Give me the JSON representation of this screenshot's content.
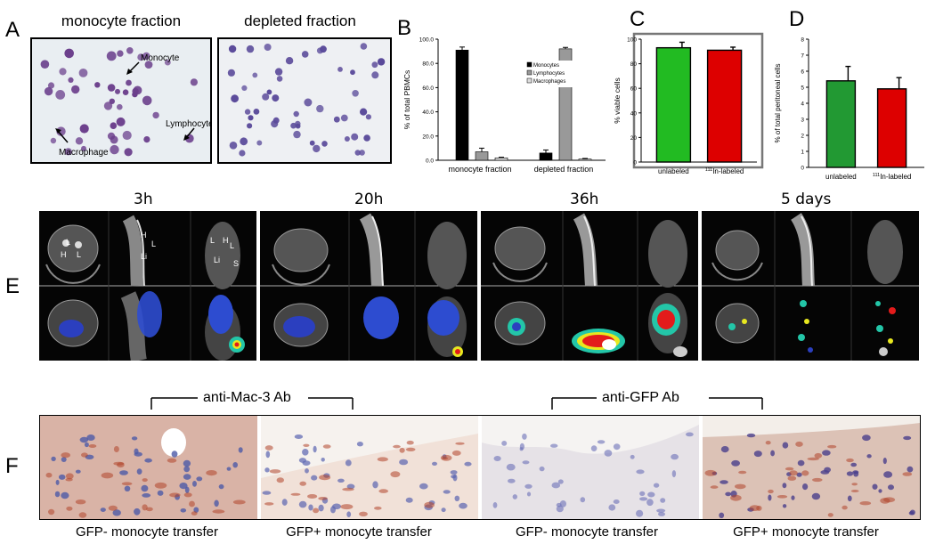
{
  "panels": {
    "A": "A",
    "B": "B",
    "C": "C",
    "D": "D",
    "E": "E",
    "F": "F"
  },
  "panelA": {
    "left_title": "monocyte fraction",
    "right_title": "depleted fraction",
    "labels": {
      "monocyte": "Monocyte",
      "lymphocyte": "Lymphocyte",
      "macrophage": "Macrophage"
    }
  },
  "chart_data": [
    {
      "panel": "B",
      "type": "bar",
      "ylabel": "% of total PBMCs",
      "ylim": [
        0,
        100
      ],
      "yticks": [
        "0.0",
        "20.0",
        "40.0",
        "60.0",
        "80.0",
        "100.0"
      ],
      "categories": [
        "monocyte fraction",
        "depleted fraction"
      ],
      "series": [
        {
          "name": "Monocytes",
          "color": "#000000",
          "values": [
            91,
            6
          ],
          "errors": [
            2.5,
            2.5
          ]
        },
        {
          "name": "Lymphocytes",
          "color": "#999999",
          "values": [
            7,
            92
          ],
          "errors": [
            3,
            1.2
          ]
        },
        {
          "name": "Macrophages",
          "color": "#dddddd",
          "values": [
            2,
            1
          ],
          "errors": [
            0.5,
            0.5
          ]
        }
      ],
      "legend": "inside-right"
    },
    {
      "panel": "C",
      "type": "bar",
      "ylabel": "% viable cells",
      "ylim": [
        0,
        100
      ],
      "yticks": [
        "0",
        "20",
        "40",
        "60",
        "80",
        "100"
      ],
      "categories": [
        "unlabeled",
        "111In-labeled"
      ],
      "values": [
        93,
        91
      ],
      "errors": [
        4.5,
        2.5
      ],
      "colors": [
        "#22bb22",
        "#dd0000"
      ]
    },
    {
      "panel": "D",
      "type": "bar",
      "ylabel": "% of total peritoneal cells",
      "ylim": [
        0,
        8
      ],
      "yticks": [
        "0",
        "1",
        "2",
        "3",
        "4",
        "5",
        "6",
        "7",
        "8"
      ],
      "categories": [
        "unlabeled",
        "111In-labeled"
      ],
      "values": [
        5.4,
        4.9
      ],
      "errors": [
        0.9,
        0.7
      ],
      "colors": [
        "#229933",
        "#dd0000"
      ]
    }
  ],
  "panelC_xlabels": {
    "unlabeled": "unlabeled",
    "sup": "111",
    "labeled": "In-labeled"
  },
  "panelD_xlabels": {
    "unlabeled": "unlabeled",
    "sup": "111",
    "labeled": "In-labeled"
  },
  "panelE": {
    "timepoints": [
      "3h",
      "20h",
      "36h",
      "5 days"
    ],
    "organ_labels": {
      "L": "L",
      "H": "H",
      "Li": "Li",
      "S": "S"
    }
  },
  "panelF": {
    "antibody_left": "anti-Mac-3 Ab",
    "antibody_right": "anti-GFP Ab",
    "captions": [
      "GFP- monocyte transfer",
      "GFP+ monocyte transfer",
      "GFP- monocyte transfer",
      "GFP+ monocyte transfer"
    ]
  }
}
